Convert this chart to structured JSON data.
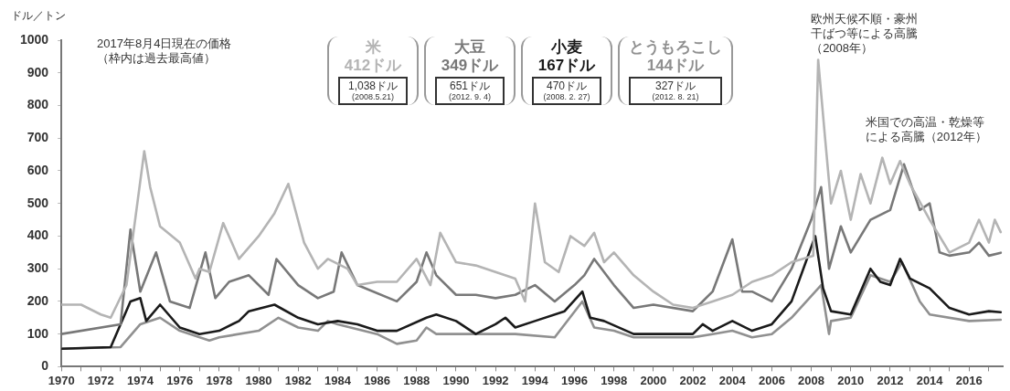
{
  "chart_data": {
    "type": "line",
    "ylabel": "ドル／トン",
    "xlim": [
      1970,
      2017.7
    ],
    "ylim": [
      0,
      1000
    ],
    "xticks": [
      1970,
      {
        "value": 1971,
        "label": null
      },
      1972,
      {
        "value": 1973,
        "label": null
      },
      1974,
      {
        "value": 1975,
        "label": null
      },
      1976,
      {
        "value": 1977,
        "label": null
      },
      1978,
      {
        "value": 1979,
        "label": null
      },
      1980,
      {
        "value": 1981,
        "label": null
      },
      1982,
      {
        "value": 1983,
        "label": null
      },
      1984,
      {
        "value": 1985,
        "label": null
      },
      1986,
      {
        "value": 1987,
        "label": null
      },
      1988,
      {
        "value": 1989,
        "label": null
      },
      1990,
      {
        "value": 1991,
        "label": null
      },
      1992,
      {
        "value": 1993,
        "label": null
      },
      1994,
      {
        "value": 1995,
        "label": null
      },
      1996,
      {
        "value": 1997,
        "label": null
      },
      1998,
      {
        "value": 1999,
        "label": null
      },
      2000,
      {
        "value": 2001,
        "label": null
      },
      2002,
      {
        "value": 2003,
        "label": null
      },
      2004,
      {
        "value": 2005,
        "label": null
      },
      2006,
      {
        "value": 2007,
        "label": null
      },
      2008,
      {
        "value": 2009,
        "label": null
      },
      2010,
      {
        "value": 2011,
        "label": null
      },
      2012,
      {
        "value": 2013,
        "label": null
      },
      2014,
      {
        "value": 2015,
        "label": null
      },
      2016,
      {
        "value": 2017,
        "label": null
      }
    ],
    "yticks": [
      0,
      100,
      200,
      300,
      400,
      500,
      600,
      700,
      800,
      900,
      1000
    ],
    "grid": false,
    "legend": "top",
    "marker": "none",
    "line_style": "solid",
    "series": [
      {
        "name": "米",
        "color": "#b4b4b4",
        "x": [
          1970,
          1971,
          1972,
          1972.5,
          1973.3,
          1974.2,
          1974.5,
          1975,
          1976,
          1976.8,
          1977,
          1977.5,
          1978.2,
          1979,
          1980,
          1980.8,
          1981.5,
          1982.3,
          1983,
          1983.5,
          1984.5,
          1985,
          1986,
          1987,
          1988,
          1988.7,
          1989.2,
          1990,
          1991,
          1992,
          1993,
          1993.5,
          1994,
          1994.5,
          1995.2,
          1995.8,
          1996.5,
          1997,
          1997.5,
          1998,
          1999,
          2000,
          2001,
          2002,
          2003,
          2004,
          2005,
          2006,
          2007,
          2008.1,
          2008.35,
          2008.7,
          2009,
          2009.5,
          2010,
          2010.5,
          2011,
          2011.6,
          2012,
          2012.5,
          2013,
          2014,
          2015,
          2016,
          2016.5,
          2017,
          2017.3,
          2017.6
        ],
        "values": [
          190,
          190,
          160,
          150,
          250,
          660,
          550,
          430,
          380,
          270,
          300,
          290,
          440,
          330,
          400,
          470,
          560,
          380,
          300,
          330,
          300,
          250,
          260,
          260,
          330,
          250,
          410,
          320,
          310,
          290,
          270,
          200,
          500,
          320,
          290,
          400,
          370,
          410,
          320,
          350,
          280,
          230,
          190,
          180,
          200,
          220,
          260,
          280,
          320,
          340,
          940,
          700,
          500,
          600,
          450,
          590,
          500,
          640,
          560,
          630,
          560,
          450,
          350,
          380,
          450,
          380,
          450,
          412
        ]
      },
      {
        "name": "大豆",
        "color": "#787878",
        "x": [
          1970,
          1973,
          1973.5,
          1974,
          1974.8,
          1975.5,
          1976.5,
          1977.3,
          1977.8,
          1978.5,
          1979.5,
          1980.5,
          1980.9,
          1982,
          1983,
          1983.8,
          1984.2,
          1985,
          1987,
          1988,
          1988.5,
          1989,
          1990,
          1991,
          1992,
          1993,
          1994,
          1995,
          1996,
          1996.5,
          1997,
          1998,
          1999,
          2000,
          2002,
          2003,
          2004,
          2004.5,
          2005,
          2006,
          2007,
          2008,
          2008.5,
          2008.9,
          2009.5,
          2010,
          2011,
          2012,
          2012.7,
          2013.5,
          2014,
          2014.5,
          2015,
          2016,
          2016.5,
          2017,
          2017.6
        ],
        "values": [
          100,
          130,
          420,
          230,
          350,
          200,
          180,
          350,
          210,
          260,
          280,
          220,
          330,
          250,
          210,
          230,
          350,
          250,
          200,
          260,
          350,
          280,
          220,
          220,
          210,
          220,
          250,
          200,
          250,
          280,
          330,
          250,
          180,
          190,
          170,
          230,
          390,
          230,
          230,
          200,
          300,
          450,
          550,
          300,
          430,
          350,
          450,
          480,
          620,
          480,
          500,
          350,
          340,
          350,
          380,
          340,
          349
        ]
      },
      {
        "name": "小麦",
        "color": "#1a1a1a",
        "x": [
          1970,
          1972.5,
          1973.5,
          1974,
          1974.3,
          1975,
          1976,
          1977,
          1978,
          1979,
          1979.5,
          1980.8,
          1982,
          1983,
          1984,
          1985,
          1986,
          1987,
          1988.5,
          1989,
          1990,
          1991,
          1992,
          1992.5,
          1993,
          1994,
          1995.5,
          1996.4,
          1996.8,
          1997.5,
          1999,
          2002,
          2002.5,
          2003,
          2004,
          2005,
          2006,
          2007,
          2008.2,
          2008.6,
          2009,
          2010,
          2010.5,
          2011,
          2011.5,
          2012,
          2012.5,
          2013,
          2014,
          2015,
          2016,
          2017,
          2017.6
        ],
        "values": [
          55,
          60,
          200,
          210,
          140,
          190,
          120,
          100,
          110,
          140,
          170,
          190,
          150,
          130,
          140,
          130,
          110,
          110,
          150,
          160,
          140,
          100,
          130,
          150,
          120,
          140,
          170,
          230,
          150,
          140,
          100,
          100,
          130,
          110,
          140,
          110,
          130,
          200,
          400,
          240,
          170,
          160,
          230,
          300,
          260,
          250,
          330,
          270,
          240,
          180,
          160,
          170,
          167
        ]
      },
      {
        "name": "とうもろこし",
        "color": "#909090",
        "x": [
          1970,
          1973,
          1974,
          1975,
          1976,
          1977.5,
          1978,
          1980,
          1981,
          1982,
          1983,
          1983.5,
          1984,
          1986,
          1987,
          1988,
          1988.5,
          1989,
          1991,
          1993,
          1995,
          1996.4,
          1997,
          1998,
          1999,
          2002,
          2003,
          2004,
          2005,
          2006,
          2007,
          2008.5,
          2008.9,
          2009,
          2010,
          2011,
          2012,
          2012.6,
          2013.5,
          2014,
          2016,
          2017.6
        ],
        "values": [
          55,
          60,
          130,
          150,
          110,
          80,
          90,
          110,
          150,
          120,
          110,
          140,
          130,
          100,
          70,
          80,
          120,
          100,
          100,
          100,
          90,
          200,
          120,
          110,
          90,
          90,
          100,
          110,
          90,
          100,
          150,
          250,
          100,
          140,
          150,
          280,
          260,
          320,
          200,
          160,
          140,
          144
        ]
      }
    ],
    "annotations": [
      "2017年8月4日現在の価格（枠内は過去最高値）",
      "412ドル",
      "1,038ドル\n(2008.5.21)",
      "349ドル",
      "651ドル\n(2012. 9. 4)",
      "167ドル",
      "470ドル\n(2008. 2. 27)",
      "144ドル",
      "327ドル\n(2012. 8. 21)",
      {
        "text": "欧州天候不順・豪州干ばつ等による高騰（2008年）",
        "x": 2008.35,
        "y": 940
      },
      {
        "text": "米国での高温・乾燥等による高騰（2012年）",
        "x": 2012.5,
        "y": 640
      }
    ]
  }
}
